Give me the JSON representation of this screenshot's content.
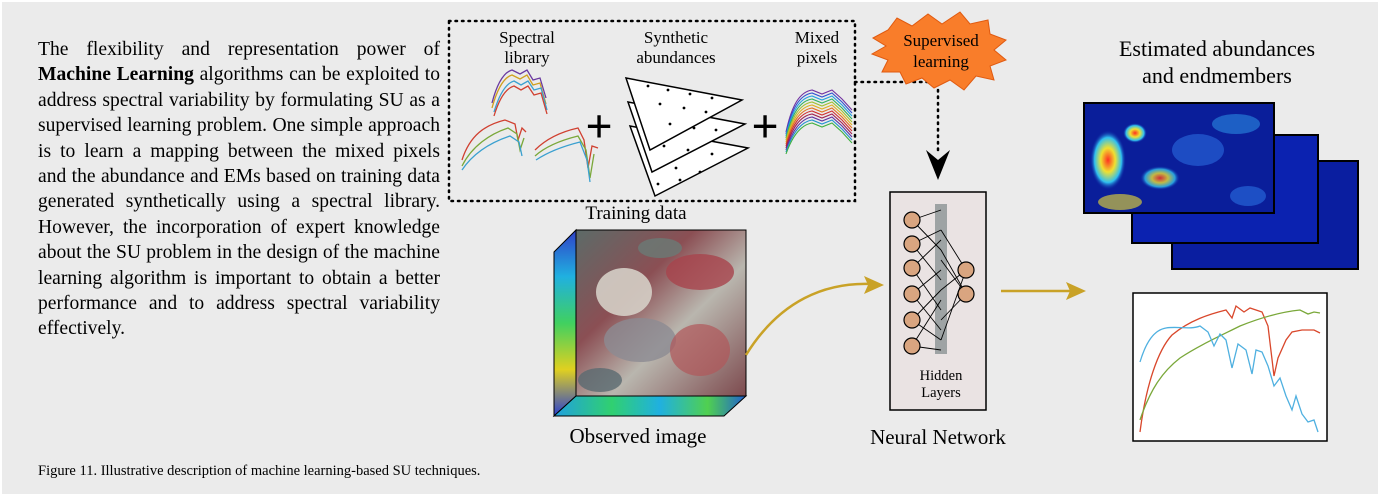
{
  "paragraph": {
    "before_bold": "The flexibility and representation power of ",
    "bold": "Machine Learning",
    "after_bold": " algorithms can be exploited to address spectral variability by formulating SU as a supervised learning problem. One simple approach is to learn a mapping between the mixed pixels and the abundance and EMs based on training data generated synthetically using a spectral library. However, the incorporation of expert knowledge about the SU problem in the design of the machine learning algorithm is important to obtain a better performance and to address spectral variability effectively."
  },
  "training": {
    "spectral_library": [
      "Spectral",
      "library"
    ],
    "synthetic_abundances": [
      "Synthetic",
      "abundances"
    ],
    "mixed_pixels": [
      "Mixed",
      "pixels"
    ],
    "plus": "+",
    "label": "Training data"
  },
  "supervised": [
    "Supervised",
    "learning"
  ],
  "estimated": [
    "Estimated abundances",
    "and endmembers"
  ],
  "observed_label": "Observed image",
  "network": {
    "hidden": [
      "Hidden",
      "Layers"
    ],
    "label": "Neural Network"
  },
  "caption": "Figure 11.  Illustrative description of machine learning-based SU techniques.",
  "colors": {
    "panel": "#ebebeb",
    "arrow": "#c9a227",
    "burst": "#f97d2a",
    "node": "#d9a580",
    "net_box": "#eae3e3",
    "bar": "#9ea3a4",
    "spectrum_red": "#d9472b",
    "spectrum_green": "#7aa83a",
    "spectrum_blue": "#4fb0e0"
  }
}
